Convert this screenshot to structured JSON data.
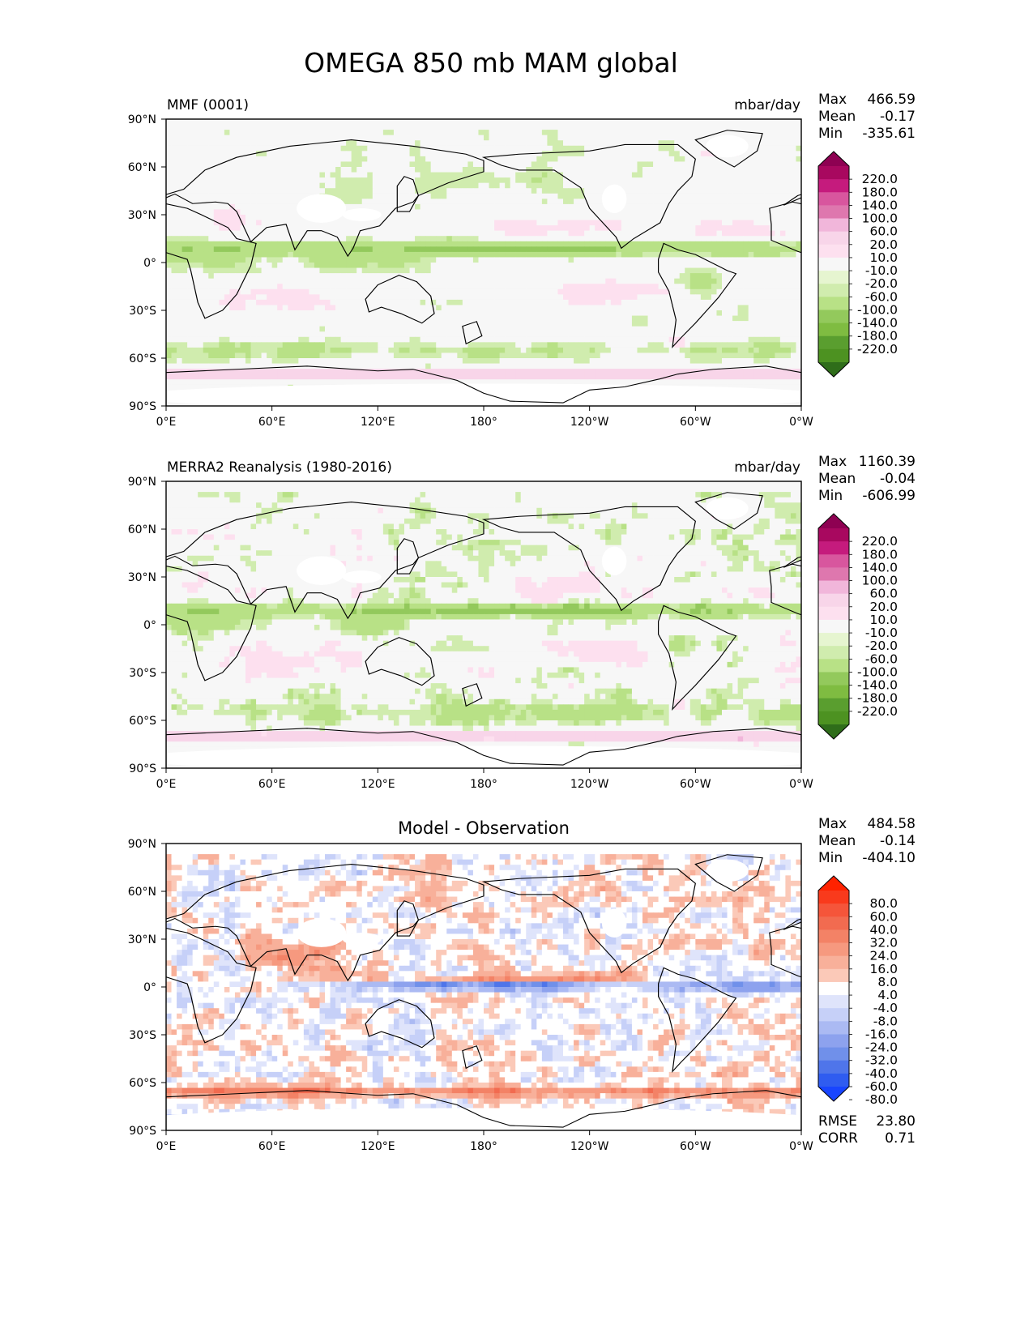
{
  "title": "OMEGA 850 mb MAM global",
  "axes": {
    "lat_labels": [
      "90°N",
      "60°N",
      "30°N",
      "0°",
      "30°S",
      "60°S",
      "90°S"
    ],
    "lon_labels": [
      "0°E",
      "60°E",
      "120°E",
      "180°",
      "120°W",
      "60°W",
      "0°W"
    ]
  },
  "panels": [
    {
      "left_title": "MMF (0001)",
      "center_title": "",
      "units": "mbar/day",
      "stats": [
        {
          "label": "Max",
          "value": "466.59"
        },
        {
          "label": "Mean",
          "value": "-0.17"
        },
        {
          "label": "Min",
          "value": "-335.61"
        }
      ],
      "colorbar": {
        "labels": [
          "220.0",
          "180.0",
          "140.0",
          "100.0",
          "60.0",
          "20.0",
          "10.0",
          "-10.0",
          "-20.0",
          "-60.0",
          "-100.0",
          "-140.0",
          "-180.0",
          "-220.0"
        ],
        "colors": [
          "#8e0152",
          "#a8085f",
          "#c51b7d",
          "#d8569e",
          "#de77ae",
          "#f1b6da",
          "#f8d5e9",
          "#fde0ef",
          "#f7f7f7",
          "#e6f5d0",
          "#d0ecae",
          "#b8e186",
          "#93c95c",
          "#7fbc41",
          "#5a9e2f",
          "#4d9221",
          "#2f6d1a"
        ]
      },
      "field": "omega_model"
    },
    {
      "left_title": "MERRA2 Reanalysis (1980-2016)",
      "center_title": "",
      "units": "mbar/day",
      "stats": [
        {
          "label": "Max",
          "value": "1160.39"
        },
        {
          "label": "Mean",
          "value": "-0.04"
        },
        {
          "label": "Min",
          "value": "-606.99"
        }
      ],
      "colorbar": {
        "labels": [
          "220.0",
          "180.0",
          "140.0",
          "100.0",
          "60.0",
          "20.0",
          "10.0",
          "-10.0",
          "-20.0",
          "-60.0",
          "-100.0",
          "-140.0",
          "-180.0",
          "-220.0"
        ],
        "colors": [
          "#8e0152",
          "#a8085f",
          "#c51b7d",
          "#d8569e",
          "#de77ae",
          "#f1b6da",
          "#f8d5e9",
          "#fde0ef",
          "#f7f7f7",
          "#e6f5d0",
          "#d0ecae",
          "#b8e186",
          "#93c95c",
          "#7fbc41",
          "#5a9e2f",
          "#4d9221",
          "#2f6d1a"
        ]
      },
      "field": "omega_obs"
    },
    {
      "left_title": "",
      "center_title": "Model - Observation",
      "units": "",
      "stats": [
        {
          "label": "Max",
          "value": "484.58"
        },
        {
          "label": "Mean",
          "value": "-0.14"
        },
        {
          "label": "Min",
          "value": "-404.10"
        }
      ],
      "extra_stats": [
        {
          "label": "RMSE",
          "value": "23.80"
        },
        {
          "label": "CORR",
          "value": "0.71"
        }
      ],
      "colorbar": {
        "labels": [
          "80.0",
          "60.0",
          "40.0",
          "32.0",
          "24.0",
          "16.0",
          "8.0",
          "4.0",
          "-4.0",
          "-8.0",
          "-16.0",
          "-24.0",
          "-32.0",
          "-40.0",
          "-60.0",
          "-80.0"
        ],
        "colors": [
          "#ff2200",
          "#f93a1c",
          "#f5553a",
          "#f26b50",
          "#f38266",
          "#f6997f",
          "#f8b09a",
          "#fbc9b8",
          "#ffffff",
          "#dfe4fb",
          "#c6d0f8",
          "#abbaf3",
          "#8da2ee",
          "#7090ea",
          "#4f75ea",
          "#2f5cf0",
          "#1845ff"
        ]
      },
      "field": "difference"
    }
  ]
}
